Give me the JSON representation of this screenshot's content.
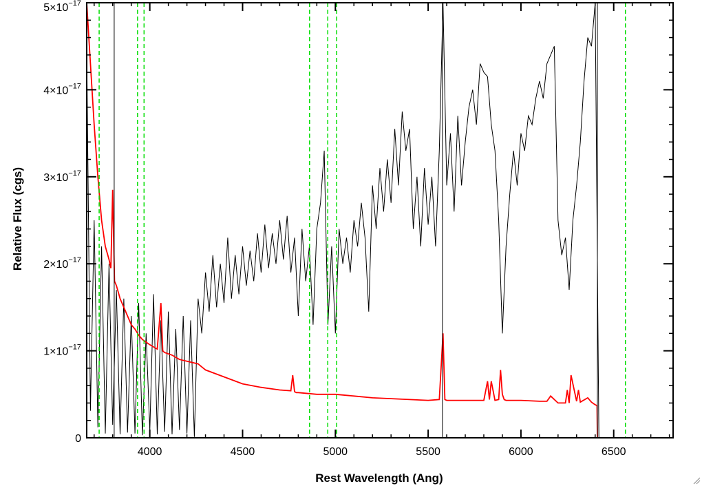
{
  "chart_data": {
    "type": "line",
    "xlabel": "Rest Wavelength (Ang)",
    "ylabel": "Relative Flux (cgs)",
    "xlim": [
      3660,
      6820
    ],
    "ylim": [
      0,
      5e-17
    ],
    "x_ticks": [
      {
        "value": 4000,
        "label": "4000"
      },
      {
        "value": 4500,
        "label": "4500"
      },
      {
        "value": 5000,
        "label": "5000"
      },
      {
        "value": 5500,
        "label": "5500"
      },
      {
        "value": 6000,
        "label": "6000"
      },
      {
        "value": 6500,
        "label": "6500"
      }
    ],
    "x_minor_step": 100,
    "y_ticks": [
      {
        "value": 0,
        "mantissa": "0",
        "exponent": ""
      },
      {
        "value": 1e-17,
        "mantissa": "1×10",
        "exponent": "−17"
      },
      {
        "value": 2e-17,
        "mantissa": "2×10",
        "exponent": "−17"
      },
      {
        "value": 3e-17,
        "mantissa": "3×10",
        "exponent": "−17"
      },
      {
        "value": 4e-17,
        "mantissa": "4×10",
        "exponent": "−17"
      },
      {
        "value": 5e-17,
        "mantissa": "5×10",
        "exponent": "−17"
      }
    ],
    "y_minor_step": 2e-18,
    "grid": false,
    "series": [
      {
        "role": "observed-spectrum",
        "color": "#000000",
        "x": [
          3660,
          3680,
          3700,
          3720,
          3740,
          3760,
          3780,
          3800,
          3820,
          3840,
          3860,
          3880,
          3900,
          3920,
          3940,
          3960,
          3980,
          4000,
          4020,
          4040,
          4060,
          4080,
          4100,
          4120,
          4140,
          4160,
          4180,
          4200,
          4220,
          4240,
          4260,
          4280,
          4300,
          4320,
          4340,
          4360,
          4380,
          4400,
          4420,
          4440,
          4460,
          4480,
          4500,
          4520,
          4540,
          4560,
          4580,
          4600,
          4620,
          4640,
          4660,
          4680,
          4700,
          4720,
          4740,
          4760,
          4780,
          4800,
          4820,
          4840,
          4860,
          4880,
          4900,
          4920,
          4940,
          4960,
          4980,
          5000,
          5020,
          5040,
          5060,
          5080,
          5100,
          5120,
          5140,
          5160,
          5180,
          5200,
          5220,
          5240,
          5260,
          5280,
          5300,
          5320,
          5340,
          5360,
          5380,
          5400,
          5420,
          5440,
          5460,
          5480,
          5500,
          5520,
          5540,
          5560,
          5580,
          5600,
          5620,
          5640,
          5660,
          5680,
          5700,
          5720,
          5740,
          5760,
          5780,
          5800,
          5820,
          5840,
          5860,
          5880,
          5900,
          5920,
          5940,
          5960,
          5980,
          6000,
          6020,
          6040,
          6060,
          6080,
          6100,
          6120,
          6140,
          6160,
          6180,
          6200,
          6220,
          6240,
          6260,
          6280,
          6300,
          6320,
          6340,
          6360,
          6380,
          6400,
          6420,
          6440,
          6460,
          6480,
          6500,
          6520,
          6540,
          6560,
          6580,
          6600,
          6620,
          6640,
          6660,
          6680,
          6700,
          6720,
          6740,
          6760,
          6780,
          6800,
          6820
        ],
        "y": [
          4.5e-17,
          3.1e-18,
          2.5e-17,
          1.2e-18,
          2.2e-17,
          5e-19,
          2e-17,
          1.5e-18,
          1.7e-17,
          4e-19,
          1.6e-17,
          6e-19,
          1.4e-17,
          5e-19,
          1.55e-17,
          3e-19,
          1.2e-17,
          8e-19,
          1.65e-17,
          4e-19,
          1.35e-17,
          7e-19,
          1.45e-17,
          4e-19,
          1.25e-17,
          9e-19,
          1.4e-17,
          5e-19,
          1.35e-17,
          1e-19,
          1.6e-17,
          1.2e-17,
          1.9e-17,
          1.45e-17,
          2.1e-17,
          1.5e-17,
          2e-17,
          1.55e-17,
          2.3e-17,
          1.6e-17,
          2.1e-17,
          1.65e-17,
          2.2e-17,
          1.75e-17,
          2.15e-17,
          1.8e-17,
          2.35e-17,
          1.9e-17,
          2.45e-17,
          1.95e-17,
          2.35e-17,
          2e-17,
          2.5e-17,
          2.05e-17,
          2.55e-17,
          1.9e-17,
          2.3e-17,
          1.4e-17,
          2.4e-17,
          1.8e-17,
          2.2e-17,
          1.3e-17,
          2.4e-17,
          2.7e-17,
          3.3e-17,
          1.3e-17,
          2.2e-17,
          1.2e-17,
          2.4e-17,
          2e-17,
          2.3e-17,
          1.9e-17,
          2.5e-17,
          2.2e-17,
          2.7e-17,
          2.3e-17,
          1.45e-17,
          2.9e-17,
          2.4e-17,
          3.1e-17,
          2.6e-17,
          3.2e-17,
          2.7e-17,
          3.55e-17,
          2.9e-17,
          3.75e-17,
          3.3e-17,
          3.55e-17,
          2.4e-17,
          3e-17,
          2.2e-17,
          3.1e-17,
          2.45e-17,
          3e-17,
          2.2e-17,
          3.3e-17,
          5e-17,
          2.9e-17,
          3.5e-17,
          2.6e-17,
          3.7e-17,
          2.9e-17,
          3.4e-17,
          3.8e-17,
          4e-17,
          3.6e-17,
          4.3e-17,
          4.2e-17,
          4.15e-17,
          3.6e-17,
          3.3e-17,
          2.5e-17,
          1.2e-17,
          2.2e-17,
          2.8e-17,
          3.3e-17,
          2.9e-17,
          3.5e-17,
          3.3e-17,
          3.7e-17,
          3.6e-17,
          3.9e-17,
          4.1e-17,
          3.9e-17,
          4.3e-17,
          4.4e-17,
          4.5e-17,
          2.5e-17,
          2.1e-17,
          2.3e-17,
          1.7e-17,
          2.5e-17,
          2.9e-17,
          3.4e-17,
          4.1e-17,
          4.6e-17,
          4.5e-17,
          5e-17,
          0,
          0,
          0,
          0,
          0,
          0,
          0,
          0,
          0,
          0,
          0,
          0,
          0,
          0,
          0,
          0,
          0,
          0,
          0,
          0,
          0
        ]
      },
      {
        "role": "model-fit",
        "color": "#ff0000",
        "x": [
          3660,
          3680,
          3700,
          3720,
          3740,
          3760,
          3780,
          3790,
          3800,
          3810,
          3820,
          3840,
          3860,
          3880,
          3900,
          3920,
          3940,
          3960,
          3980,
          4000,
          4040,
          4060,
          4070,
          4080,
          4120,
          4160,
          4200,
          4260,
          4300,
          4400,
          4500,
          4600,
          4700,
          4760,
          4770,
          4780,
          4790,
          4800,
          4900,
          5000,
          5100,
          5200,
          5300,
          5400,
          5500,
          5560,
          5580,
          5590,
          5600,
          5700,
          5800,
          5820,
          5830,
          5840,
          5860,
          5880,
          5890,
          5900,
          5910,
          5920,
          6000,
          6100,
          6140,
          6160,
          6200,
          6240,
          6250,
          6260,
          6270,
          6300,
          6310,
          6320,
          6360,
          6380,
          6400,
          6410,
          6412,
          6420,
          6500,
          6600,
          6700,
          6820
        ],
        "y": [
          5e-17,
          4.3e-17,
          3.6e-17,
          3e-17,
          2.5e-17,
          2.2e-17,
          2.05e-17,
          1.95e-17,
          2.85e-17,
          1.8e-17,
          1.75e-17,
          1.6e-17,
          1.5e-17,
          1.4e-17,
          1.3e-17,
          1.25e-17,
          1.18e-17,
          1.13e-17,
          1.1e-17,
          1.07e-17,
          1.02e-17,
          1.55e-17,
          1e-17,
          9.8e-18,
          9.5e-18,
          9e-18,
          8.8e-18,
          8.5e-18,
          7.8e-18,
          7e-18,
          6.2e-18,
          5.8e-18,
          5.5e-18,
          5.4e-18,
          7.2e-18,
          5.3e-18,
          5.2e-18,
          5.2e-18,
          5e-18,
          5e-18,
          4.8e-18,
          4.6e-18,
          4.5e-18,
          4.4e-18,
          4.3e-18,
          4.4e-18,
          1.2e-17,
          4.4e-18,
          4.3e-18,
          4.3e-18,
          4.3e-18,
          6.5e-18,
          4.4e-18,
          6.5e-18,
          4.3e-18,
          4.4e-18,
          7.8e-18,
          5e-18,
          4.4e-18,
          4.3e-18,
          4.3e-18,
          4.2e-18,
          4.2e-18,
          4.8e-18,
          4e-18,
          4e-18,
          5.5e-18,
          4e-18,
          7.2e-18,
          4.2e-18,
          5.5e-18,
          4.1e-18,
          4.6e-18,
          4.1e-18,
          3.8e-18,
          3.7e-18,
          0,
          0,
          0,
          0,
          0,
          0
        ]
      }
    ],
    "marker_lines": {
      "color": "#00dd00",
      "style": "dashed",
      "x": [
        3727,
        3934,
        3969,
        4861,
        4959,
        5007,
        6563
      ]
    },
    "reference_lines": {
      "color": "#000000",
      "x": [
        3808,
        5577,
        6412
      ]
    }
  }
}
